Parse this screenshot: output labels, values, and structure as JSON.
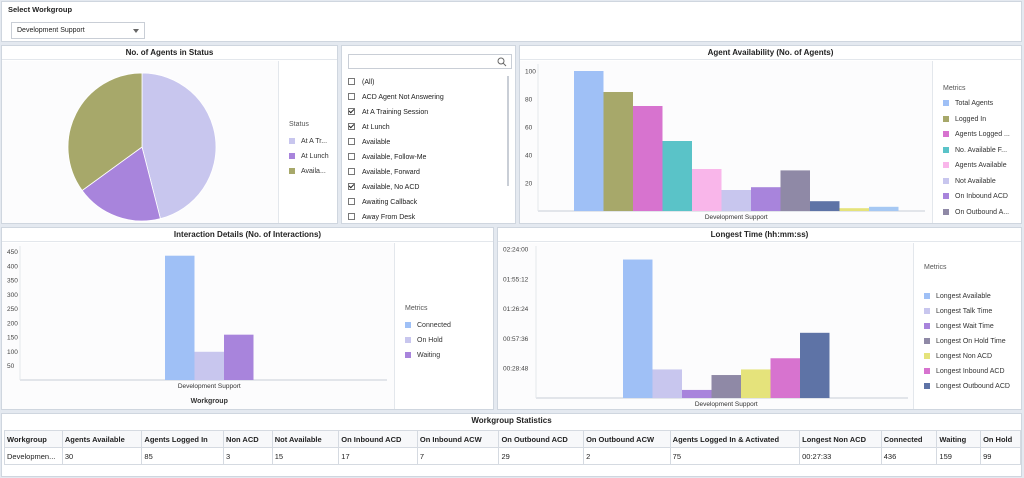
{
  "header": {
    "title": "Select Workgroup",
    "workgroup_selected": "Development Support"
  },
  "status_pie": {
    "title": "No. of Agents in Status",
    "legend_title": "Status",
    "legend": [
      {
        "label": "At A Tr...",
        "color": "#c8c6ee"
      },
      {
        "label": "At Lunch",
        "color": "#a884dc"
      },
      {
        "label": "Availa...",
        "color": "#a7a86a"
      }
    ],
    "slices": [
      {
        "name": "At A Training Session",
        "fraction": 0.46,
        "color": "#c8c6ee"
      },
      {
        "name": "At Lunch",
        "fraction": 0.19,
        "color": "#a884dc"
      },
      {
        "name": "Available, No ACD",
        "fraction": 0.35,
        "color": "#a7a86a"
      }
    ]
  },
  "filter": {
    "search_placeholder": "",
    "items": [
      {
        "label": "(All)",
        "checked": false
      },
      {
        "label": "ACD Agent Not Answering",
        "checked": false
      },
      {
        "label": "At A Training Session",
        "checked": true
      },
      {
        "label": "At Lunch",
        "checked": true
      },
      {
        "label": "Available",
        "checked": false
      },
      {
        "label": "Available, Follow-Me",
        "checked": false
      },
      {
        "label": "Available, Forward",
        "checked": false
      },
      {
        "label": "Available, No ACD",
        "checked": true
      },
      {
        "label": "Awaiting Callback",
        "checked": false
      },
      {
        "label": "Away From Desk",
        "checked": false
      }
    ]
  },
  "availability": {
    "title": "Agent Availability (No. of Agents)",
    "legend_title": "Metrics",
    "category": "Development Support",
    "y_ticks": [
      "100",
      "80",
      "60",
      "40",
      "20"
    ],
    "ylim": [
      0,
      105
    ],
    "bars": [
      {
        "label": "Total Agents",
        "value": 100,
        "color": "#9fc0f6"
      },
      {
        "label": "Logged In",
        "value": 85,
        "color": "#a7a86a"
      },
      {
        "label": "Agents Logged ...",
        "value": 75,
        "color": "#d773cf"
      },
      {
        "label": "No. Available F...",
        "value": 50,
        "color": "#5ac3c8"
      },
      {
        "label": "Agents Available",
        "value": 30,
        "color": "#f9b6ea"
      },
      {
        "label": "Not Available",
        "value": 15,
        "color": "#c8c6ee"
      },
      {
        "label": "On Inbound ACD",
        "value": 17,
        "color": "#a884dc"
      },
      {
        "label": "On Outbound A...",
        "value": 29,
        "color": "#8f89a6"
      },
      {
        "label": "",
        "value": 7,
        "color": "#5e73a6"
      },
      {
        "label": "",
        "value": 2,
        "color": "#e5e37b"
      },
      {
        "label": "",
        "value": 3,
        "color": "#a6c8f3"
      }
    ]
  },
  "interactions": {
    "title": "Interaction Details (No. of Interactions)",
    "legend_title": "Metrics",
    "category": "Development Support",
    "xlabel": "Workgroup",
    "y_ticks": [
      "450",
      "400",
      "350",
      "300",
      "250",
      "200",
      "150",
      "100",
      "50"
    ],
    "ylim": [
      0,
      470
    ],
    "bars": [
      {
        "label": "Connected",
        "value": 436,
        "color": "#9fc0f6"
      },
      {
        "label": "On Hold",
        "value": 99,
        "color": "#c8c6ee"
      },
      {
        "label": "Waiting",
        "value": 159,
        "color": "#a884dc"
      }
    ]
  },
  "longest": {
    "title": "Longest Time (hh:mm:ss)",
    "legend_title": "Metrics",
    "category": "Development Support",
    "y_ticks": [
      "02:24:00",
      "01:55:12",
      "01:26:24",
      "00:57:36",
      "00:28:48"
    ],
    "ymax_hours": 2.4,
    "bars": [
      {
        "label": "Longest Available",
        "value_hours": 2.23,
        "color": "#9fc0f6"
      },
      {
        "label": "Longest Talk Time",
        "value_hours": 0.46,
        "color": "#c8c6ee"
      },
      {
        "label": "Longest Wait Time",
        "value_hours": 0.13,
        "color": "#a884dc"
      },
      {
        "label": "Longest On Hold Time",
        "value_hours": 0.37,
        "color": "#8f89a6"
      },
      {
        "label": "Longest Non ACD",
        "value_hours": 0.46,
        "color": "#e5e37b"
      },
      {
        "label": "Longest Inbound ACD",
        "value_hours": 0.64,
        "color": "#d773cf"
      },
      {
        "label": "Longest Outbound ACD",
        "value_hours": 1.05,
        "color": "#5e73a6"
      }
    ]
  },
  "stats": {
    "title": "Workgroup Statistics",
    "columns": [
      "Workgroup",
      "Agents Available",
      "Agents Logged In",
      "Non ACD",
      "Not Available",
      "On Inbound ACD",
      "On Inbound ACW",
      "On Outbound ACD",
      "On Outbound ACW",
      "Agents Logged In & Activated",
      "Longest Non ACD",
      "Connected",
      "Waiting",
      "On Hold"
    ],
    "rows": [
      [
        "Developmen...",
        "30",
        "85",
        "3",
        "15",
        "17",
        "7",
        "29",
        "2",
        "75",
        "00:27:33",
        "436",
        "159",
        "99"
      ]
    ]
  }
}
